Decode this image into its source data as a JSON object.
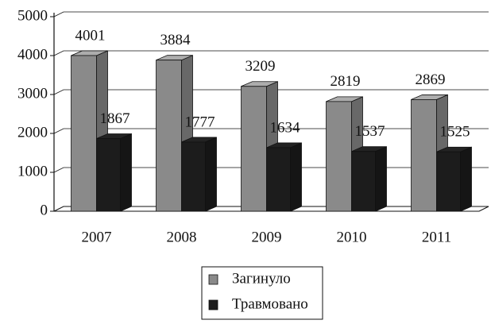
{
  "chart_data": {
    "type": "bar3d",
    "categories": [
      "2007",
      "2008",
      "2009",
      "2010",
      "2011"
    ],
    "series": [
      {
        "name": "Загинуло",
        "color": "#8a8a8a",
        "values": [
          4001,
          3884,
          3209,
          2819,
          2869
        ]
      },
      {
        "name": "Травмовано",
        "color": "#1c1c1c",
        "values": [
          1867,
          1777,
          1634,
          1537,
          1525
        ]
      }
    ],
    "ylim": [
      0,
      5000
    ],
    "yticks": [
      0,
      1000,
      2000,
      3000,
      4000,
      5000
    ],
    "grid": true
  }
}
